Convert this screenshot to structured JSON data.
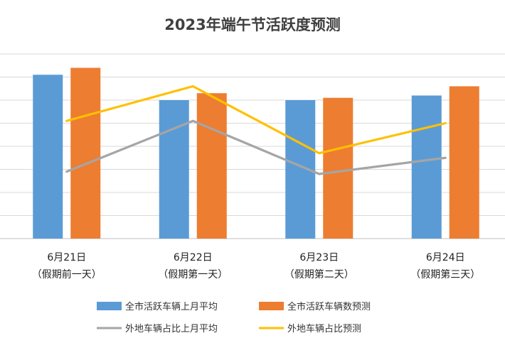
{
  "chart_data": {
    "type": "bar",
    "title": "2023年端午节活跃度预测",
    "categories": [
      {
        "date": "6月21日",
        "note": "（假期前一天）"
      },
      {
        "date": "6月22日",
        "note": "（假期第一天）"
      },
      {
        "date": "6月23日",
        "note": "（假期第二天）"
      },
      {
        "date": "6月24日",
        "note": "（假期第三天）"
      }
    ],
    "ylim": [
      0,
      8
    ],
    "grid": true,
    "legend_position": "bottom",
    "series": [
      {
        "name": "全市活跃车辆上月平均",
        "kind": "bar",
        "color": "#5B9BD5",
        "values": [
          7.1,
          6.0,
          6.0,
          6.2
        ]
      },
      {
        "name": "全市活跃车辆数预测",
        "kind": "bar",
        "color": "#ED7D31",
        "values": [
          7.4,
          6.3,
          6.1,
          6.6
        ]
      },
      {
        "name": "外地车辆占比上月平均",
        "kind": "line",
        "color": "#A5A5A5",
        "values": [
          2.9,
          5.1,
          2.8,
          3.5
        ]
      },
      {
        "name": "外地车辆占比预测",
        "kind": "line",
        "color": "#FFC000",
        "values": [
          5.1,
          6.6,
          3.7,
          5.0
        ]
      }
    ]
  }
}
